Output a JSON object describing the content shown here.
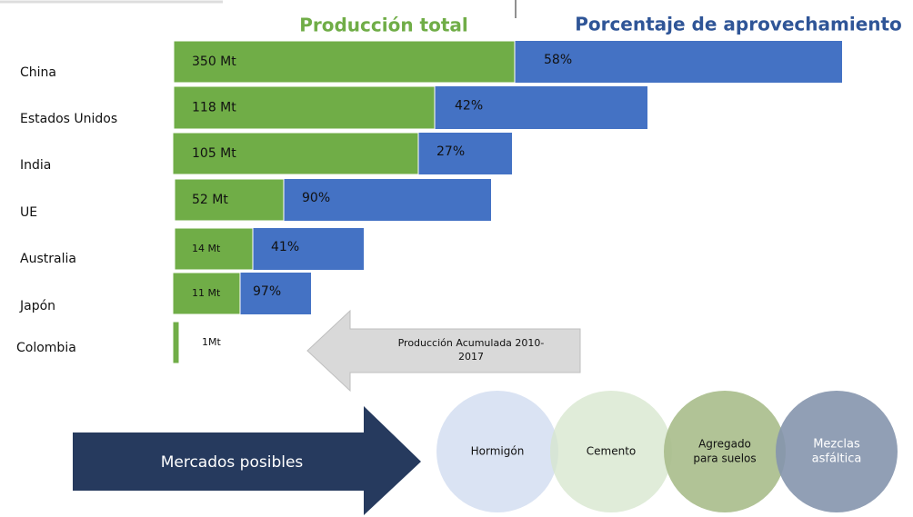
{
  "header": {
    "left": "Producción total",
    "right": "Porcentaje de aprovechamiento"
  },
  "rows": [
    {
      "country": "China",
      "production": "350 Mt",
      "share": "58%"
    },
    {
      "country": "Estados Unidos",
      "production": "118 Mt",
      "share": "42%"
    },
    {
      "country": "India",
      "production": "105 Mt",
      "share": "27%"
    },
    {
      "country": "UE",
      "production": "52 Mt",
      "share": "90%"
    },
    {
      "country": "Australia",
      "production": "14 Mt",
      "share": "41%"
    },
    {
      "country": "Japón",
      "production": "11 Mt",
      "share": "97%"
    },
    {
      "country": "Colombia",
      "production": "1Mt"
    }
  ],
  "arrow_note": [
    "Producción Acumulada 2010-",
    "2017"
  ],
  "markets": {
    "title": "Mercados posibles",
    "items": [
      [
        "Hormigón"
      ],
      [
        "Cemento"
      ],
      [
        "Agregado",
        "para suelos"
      ],
      [
        "Mezclas",
        "asfáltica"
      ]
    ]
  }
}
